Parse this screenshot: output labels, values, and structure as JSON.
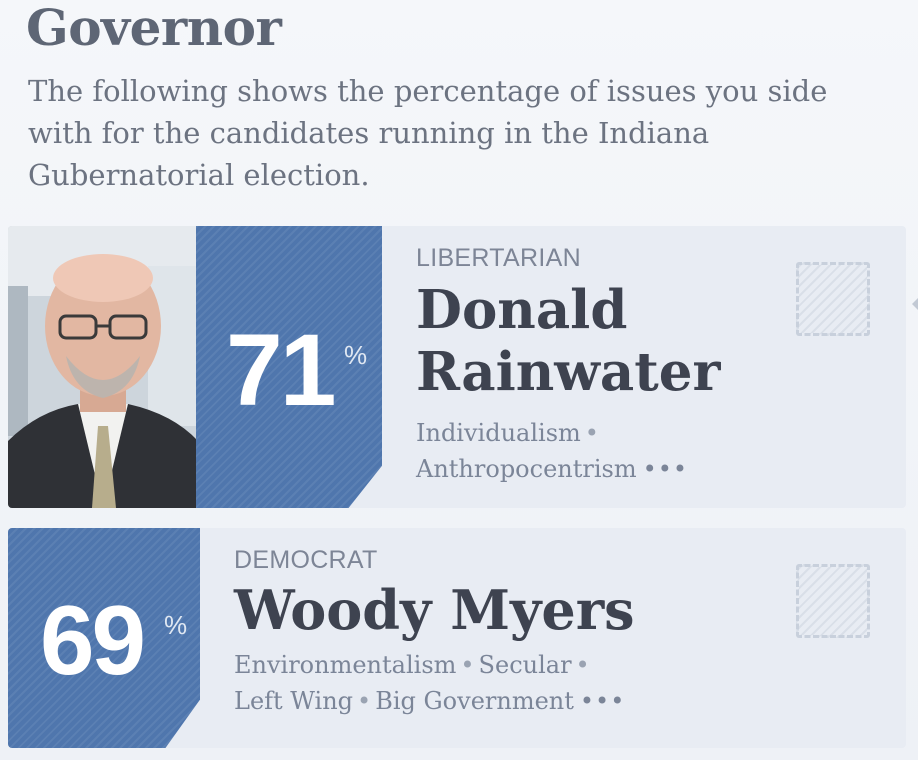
{
  "header": {
    "title": "Governor",
    "intro": "The following shows the percentage of issues you side with for the candidates running in the Indiana Gubernatorial election."
  },
  "candidates": [
    {
      "party": "LIBERTARIAN",
      "name_line1": "Donald",
      "name_line2": "Rainwater",
      "percent": "71",
      "percent_sign": "%",
      "tags": [
        "Individualism",
        "Anthropocentrism"
      ],
      "more": "•••"
    },
    {
      "party": "DEMOCRAT",
      "name_line1": "Woody Myers",
      "percent": "69",
      "percent_sign": "%",
      "tags": [
        "Environmentalism",
        "Secular",
        "Left Wing",
        "Big Government"
      ],
      "more": "•••"
    }
  ],
  "separator": "•",
  "colors": {
    "score_blue": "#4f76ad",
    "card_bg": "#e8ecf3",
    "title_text": "#5e6675",
    "name_text": "#3e4350"
  },
  "icons": {
    "select_box": "dashed-checkbox-icon",
    "candidate_photo": "person-photo"
  }
}
